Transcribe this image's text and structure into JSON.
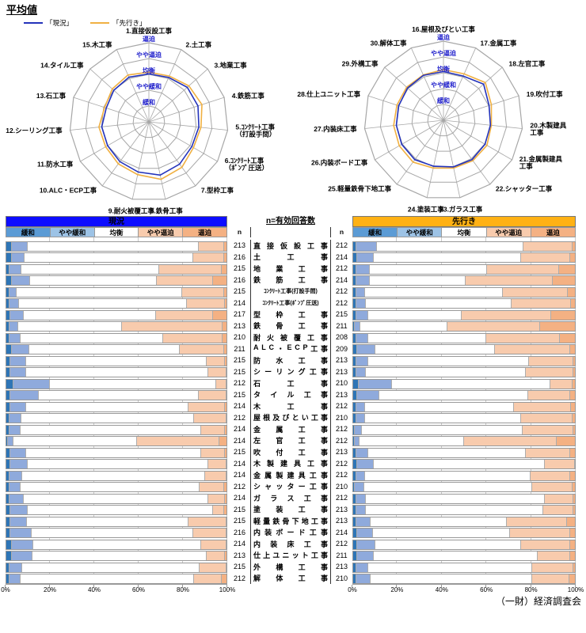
{
  "title": "平均値",
  "credit": "（一財）経済調査会",
  "middle": {
    "n_note": "n=有効回答数",
    "n_label": "n"
  },
  "legend": {
    "current_label": "「現況」",
    "outlook_label": "「先行き」"
  },
  "scale_labels": [
    "緩和",
    "やや緩和",
    "均衡",
    "やや逼迫",
    "逼迫"
  ],
  "bar_headers": {
    "current_title": "現況",
    "outlook_title": "先行き",
    "columns": [
      "緩和",
      "やや緩和",
      "均衡",
      "やや逼迫",
      "逼迫"
    ],
    "axis_ticks": [
      "0%",
      "20%",
      "40%",
      "60%",
      "80%",
      "100%"
    ]
  },
  "colors": {
    "current_line": "#2433bb",
    "outlook_line": "#f0b042",
    "banner_current": "#0d0dff",
    "banner_outlook": "#ffb114",
    "grid": "#a6a6a6",
    "ring_label": "#2222cc",
    "seg": [
      "#2e75b6",
      "#8faadc",
      "#ffffff",
      "#f8cbad",
      "#f4b183"
    ],
    "head": [
      "#5b9bd5",
      "#9dc3e6",
      "#ffffff",
      "#f8cbad",
      "#f4b183"
    ]
  },
  "chart_data": [
    {
      "type": "radar",
      "position": "left",
      "range": [
        0,
        5
      ],
      "rings": [
        "緩和",
        "やや緩和",
        "均衡",
        "やや逼迫",
        "逼迫"
      ],
      "categories": [
        "1.直接仮設工事",
        "2.土工事",
        "3.地業工事",
        "4.鉄筋工事",
        "5.ｺﾝｸﾘｰﾄ工事\n（打設手間）",
        "6.ｺﾝｸﾘｰﾄ工事\n（ﾎﾟﾝﾌﾟ圧送）",
        "7.型枠工事",
        "8.鉄骨工事",
        "9.耐火被覆工事",
        "10.ALC・ECP工事",
        "11.防水工事",
        "12.シーリング工事",
        "13.石工事",
        "14.タイル工事",
        "15.木工事"
      ],
      "series": [
        {
          "name": "現況",
          "values": [
            3.03,
            3.07,
            3.26,
            3.26,
            3.17,
            3.13,
            3.3,
            3.44,
            3.24,
            3.11,
            3.01,
            2.99,
            2.83,
            2.98,
            3.09
          ]
        },
        {
          "name": "先行き",
          "values": [
            3.14,
            3.17,
            3.4,
            3.52,
            3.31,
            3.25,
            3.55,
            3.71,
            3.41,
            3.28,
            3.15,
            3.17,
            2.94,
            3.11,
            3.24
          ]
        }
      ]
    },
    {
      "type": "radar",
      "position": "right",
      "range": [
        0,
        5
      ],
      "rings": [
        "緩和",
        "やや緩和",
        "均衡",
        "やや逼迫",
        "逼迫"
      ],
      "categories": [
        "16.屋根及びとい工事",
        "17.金属工事",
        "18.左官工事",
        "19.吹付工事",
        "20.木製建具\n工事",
        "21.金属製建具\n工事",
        "22.シャッター工事",
        "23.ガラス工事",
        "24.塗装工事",
        "25.軽量鉄骨下地工事",
        "26.内装ボード工事",
        "27.内装床工事",
        "28.仕上ユニット工事",
        "29.外構工事",
        "30.解体工事"
      ],
      "series": [
        {
          "name": "現況",
          "values": [
            3.08,
            3.06,
            3.41,
            3.03,
            2.98,
            3.03,
            3.07,
            3.01,
            2.97,
            3.08,
            3.04,
            2.99,
            2.97,
            3.05,
            3.11
          ]
        },
        {
          "name": "先行き",
          "values": [
            3.2,
            3.21,
            3.56,
            3.18,
            3.04,
            3.17,
            3.16,
            3.09,
            3.09,
            3.27,
            3.22,
            3.16,
            3.09,
            3.13,
            3.14
          ]
        }
      ]
    },
    {
      "type": "bar",
      "stacked": true,
      "name": "現況",
      "segments": [
        "緩和",
        "やや緩和",
        "均衡",
        "やや逼迫",
        "逼迫"
      ],
      "categories": [
        "直接仮設工事",
        "土工事",
        "地業工事",
        "鉄筋工事",
        "ｺﾝｸﾘｰﾄ工事(打設手間)",
        "ｺﾝｸﾘｰﾄ工事(ﾎﾟﾝﾌﾟ圧送)",
        "型枠工事",
        "鉄骨工事",
        "耐火被覆工事",
        "ALC・ECP工事",
        "防水工事",
        "シーリング工事",
        "石工事",
        "タイル工事",
        "木工事",
        "屋根及びとい工事",
        "金属工事",
        "左官工事",
        "吹付工事",
        "木製建具工事",
        "金属製建具工事",
        "シャッター工事",
        "ガラス工事",
        "塗装工事",
        "軽量鉄骨下地工事",
        "内装ボード工事",
        "内装床工事",
        "仕上ユニット工事",
        "外構工事",
        "解体工事"
      ],
      "n": [
        213,
        216,
        215,
        216,
        215,
        214,
        217,
        213,
        210,
        211,
        215,
        215,
        212,
        215,
        214,
        212,
        214,
        214,
        215,
        214,
        214,
        212,
        214,
        215,
        215,
        216,
        214,
        213,
        215,
        212
      ],
      "values": [
        [
          2,
          7.5,
          77.5,
          11.5,
          1.5
        ],
        [
          2,
          6,
          76.5,
          14,
          1.5
        ],
        [
          1,
          5.5,
          62.5,
          28.5,
          2.5
        ],
        [
          2,
          8.5,
          57.5,
          25.5,
          6.5
        ],
        [
          1,
          3.5,
          75,
          19,
          1.5
        ],
        [
          1,
          4.5,
          76,
          17.5,
          1
        ],
        [
          1.5,
          6,
          60,
          26,
          6.5
        ],
        [
          1,
          4,
          47,
          46,
          2
        ],
        [
          1,
          5,
          65,
          27,
          2
        ],
        [
          2,
          8,
          68.5,
          20,
          1.5
        ],
        [
          1.5,
          7,
          82,
          8.5,
          1
        ],
        [
          1.5,
          7,
          83,
          8,
          0.5
        ],
        [
          3,
          16.5,
          75.5,
          4.5,
          0.5
        ],
        [
          1.5,
          13,
          72.5,
          12.5,
          0.5
        ],
        [
          1.5,
          7,
          74,
          16.5,
          1
        ],
        [
          1,
          5.5,
          78.5,
          14.5,
          0.5
        ],
        [
          1,
          5,
          82,
          11,
          1
        ],
        [
          0.5,
          2.5,
          56,
          37.5,
          3.5
        ],
        [
          1.5,
          7,
          79.5,
          11,
          1
        ],
        [
          1.5,
          8,
          82,
          8,
          0.5
        ],
        [
          1,
          6,
          83,
          9.5,
          0.5
        ],
        [
          1,
          5,
          81.5,
          11,
          1.5
        ],
        [
          1,
          6.5,
          84,
          7.5,
          1
        ],
        [
          1.5,
          8,
          84,
          5,
          1.5
        ],
        [
          1.5,
          7.5,
          73.5,
          17,
          0.5
        ],
        [
          1.5,
          9.5,
          73.5,
          15,
          0.5
        ],
        [
          2,
          10,
          76,
          11.5,
          0.5
        ],
        [
          2,
          9.5,
          79,
          8.5,
          1
        ],
        [
          1,
          6,
          80.5,
          12,
          0.5
        ],
        [
          1,
          5,
          79,
          12.5,
          2.5
        ]
      ]
    },
    {
      "type": "bar",
      "stacked": true,
      "name": "先行き",
      "segments": [
        "緩和",
        "やや緩和",
        "均衡",
        "やや逼迫",
        "逼迫"
      ],
      "categories": [
        "直接仮設工事",
        "土工事",
        "地業工事",
        "鉄筋工事",
        "ｺﾝｸﾘｰﾄ工事(打設手間)",
        "ｺﾝｸﾘｰﾄ工事(ﾎﾟﾝﾌﾟ圧送)",
        "型枠工事",
        "鉄骨工事",
        "耐火被覆工事",
        "ALC・ECP工事",
        "防水工事",
        "シーリング工事",
        "石工事",
        "タイル工事",
        "木工事",
        "屋根及びとい工事",
        "金属工事",
        "左官工事",
        "吹付工事",
        "木製建具工事",
        "金属製建具工事",
        "シャッター工事",
        "ガラス工事",
        "塗装工事",
        "軽量鉄骨下地工事",
        "内装ボード工事",
        "内装床工事",
        "仕上ユニット工事",
        "外構工事",
        "解体工事"
      ],
      "n": [
        212,
        214,
        212,
        214,
        212,
        212,
        215,
        211,
        208,
        209,
        213,
        213,
        210,
        213,
        212,
        210,
        212,
        212,
        213,
        212,
        212,
        210,
        212,
        213,
        213,
        214,
        212,
        211,
        213,
        210
      ],
      "values": [
        [
          1,
          9.5,
          66,
          22,
          1.5
        ],
        [
          1.5,
          7.5,
          66.5,
          22,
          2.5
        ],
        [
          1,
          6,
          53,
          32.5,
          7.5
        ],
        [
          1,
          6,
          43.5,
          39,
          10.5
        ],
        [
          1,
          4,
          62,
          29.5,
          3.5
        ],
        [
          1,
          4.5,
          65.5,
          27,
          2
        ],
        [
          1,
          5.5,
          42,
          40.5,
          11
        ],
        [
          0.5,
          2.5,
          39,
          42,
          16
        ],
        [
          1,
          5.5,
          53,
          33.5,
          7
        ],
        [
          1.5,
          8,
          54,
          34,
          2.5
        ],
        [
          1,
          5.5,
          72.5,
          20,
          1
        ],
        [
          1,
          4.5,
          72,
          21.5,
          1
        ],
        [
          2,
          15,
          71.5,
          10,
          1.5
        ],
        [
          1.5,
          10,
          67,
          19,
          2.5
        ],
        [
          1,
          4,
          67,
          26,
          2
        ],
        [
          1,
          4,
          70.5,
          23,
          1.5
        ],
        [
          0.5,
          3,
          72.5,
          23,
          1
        ],
        [
          0.5,
          2,
          47,
          42,
          8.5
        ],
        [
          1,
          5.5,
          71,
          20,
          2.5
        ],
        [
          1.5,
          7.5,
          77,
          13.5,
          0.5
        ],
        [
          1,
          4,
          74.5,
          18,
          2.5
        ],
        [
          0.5,
          4,
          76,
          18,
          1.5
        ],
        [
          1,
          4.5,
          80.5,
          13,
          1
        ],
        [
          1,
          4.5,
          80,
          13.5,
          1
        ],
        [
          1,
          6.5,
          61.5,
          27,
          4
        ],
        [
          1.5,
          7,
          62,
          27,
          2.5
        ],
        [
          1.5,
          8,
          66,
          22,
          2.5
        ],
        [
          1.5,
          7.5,
          74,
          14.5,
          2.5
        ],
        [
          1,
          5.5,
          74,
          18.5,
          1
        ],
        [
          1,
          6.5,
          73,
          16.5,
          3
        ]
      ]
    }
  ]
}
